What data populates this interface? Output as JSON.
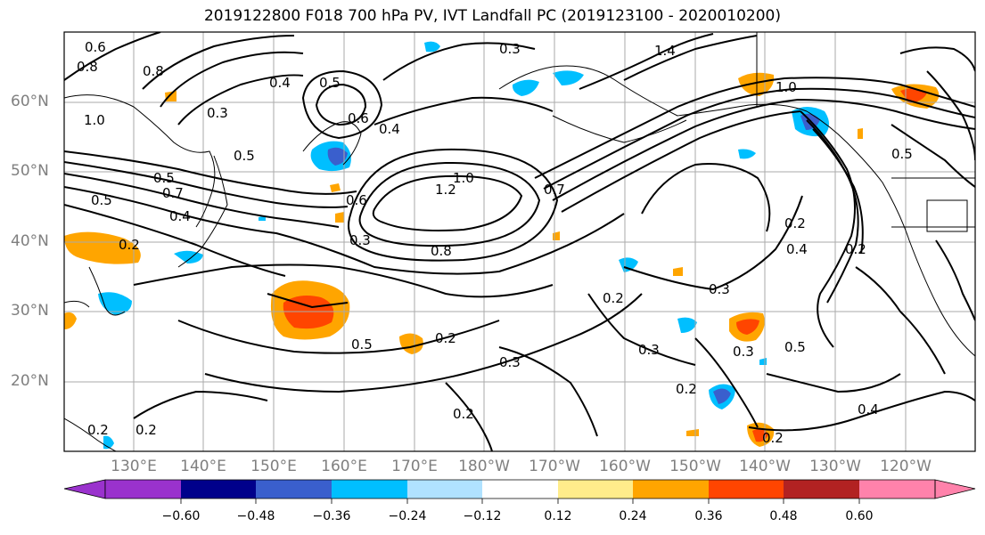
{
  "title": "2019122800 F018 700 hPa PV, IVT Landfall PC (2019123100 - 2020010200)",
  "lat_labels": [
    "60°N",
    "50°N",
    "40°N",
    "30°N",
    "20°N"
  ],
  "lon_labels": [
    "130°E",
    "140°E",
    "150°E",
    "160°E",
    "170°E",
    "180°W",
    "170°W",
    "160°W",
    "150°W",
    "140°W",
    "130°W",
    "120°W"
  ],
  "colorbar": {
    "ticks": [
      "−0.60",
      "−0.48",
      "−0.36",
      "−0.24",
      "−0.12",
      "0.12",
      "0.24",
      "0.36",
      "0.48",
      "0.60"
    ],
    "colors": [
      "#9a32cd",
      "#00008b",
      "#3a5fcd",
      "#00bfff",
      "#b0e2ff",
      "#ffffff",
      "#ffec8b",
      "#ffa500",
      "#ff4500",
      "#b22222",
      "#ff82ab"
    ]
  },
  "contour_labels": [
    "0.6",
    "0.8",
    "0.8",
    "0.4",
    "0.5",
    "0.3",
    "1.4",
    "1.0",
    "0.3",
    "0.6",
    "0.5",
    "0.4",
    "1.0",
    "0.5",
    "0.5",
    "0.7",
    "0.4",
    "0.6",
    "1.0",
    "1.2",
    "0.7",
    "0.8",
    "0.5",
    "0.2",
    "0.2",
    "0.4",
    "0.3",
    "0.2",
    "0.2",
    "0.5",
    "0.3",
    "0.2",
    "0.3",
    "0.2",
    "0.3",
    "0.5",
    "0.4",
    "0.2",
    "0.2",
    "0.2",
    "0.2",
    "0.3"
  ]
}
